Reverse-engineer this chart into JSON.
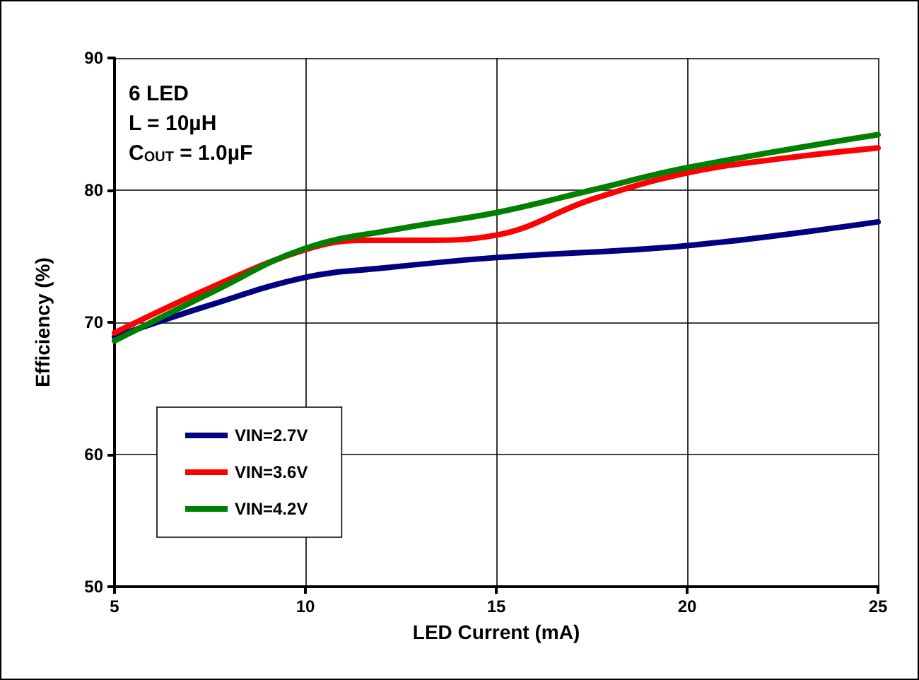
{
  "chart_data": {
    "type": "line",
    "xlabel": "LED Current (mA)",
    "ylabel": "Efficiency (%)",
    "annotations": [
      "6 LED",
      "L = 10µH",
      "C$_{OUT}$ = 1.0µF"
    ],
    "xlim": [
      5,
      25
    ],
    "xticks": [
      5,
      10,
      15,
      20,
      25
    ],
    "ylim": [
      50,
      90
    ],
    "yticks": [
      50,
      60,
      70,
      80,
      90
    ],
    "grid": true,
    "legend": "bottom left",
    "marker": "none",
    "line_style": "solid",
    "series": [
      {
        "name": "VIN=2.7V",
        "color": "#000080",
        "x": [
          5,
          7.5,
          10,
          12,
          15,
          20,
          25
        ],
        "values": [
          68.9,
          71.3,
          73.4,
          74.1,
          74.9,
          75.8,
          77.6
        ]
      },
      {
        "name": "VIN=3.6V",
        "color": "#ff0000",
        "x": [
          5,
          7.5,
          10,
          11.5,
          13,
          15,
          17.5,
          20,
          22.5,
          25
        ],
        "values": [
          69.2,
          72.6,
          75.5,
          76.2,
          76.2,
          76.6,
          79.3,
          81.3,
          82.4,
          83.2
        ]
      },
      {
        "name": "VIN=4.2V",
        "color": "#008000",
        "x": [
          5,
          7.5,
          10,
          12.5,
          15,
          17.5,
          20,
          25
        ],
        "values": [
          68.6,
          72.2,
          75.6,
          77.1,
          78.3,
          80.0,
          81.7,
          84.2
        ]
      }
    ]
  }
}
